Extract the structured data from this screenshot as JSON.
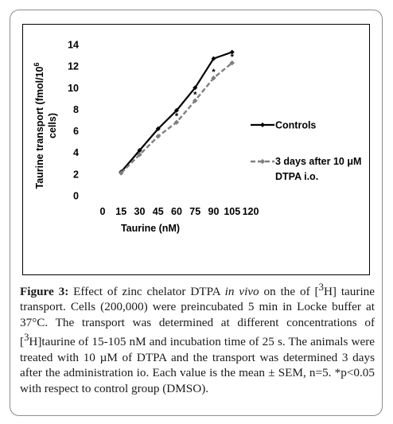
{
  "chart_data": {
    "type": "line",
    "xlabel": "Taurine (nM)",
    "ylabel_line1": "Taurine transport (fmol/10",
    "ylabel_sup": "6",
    "ylabel_line2": "cells)",
    "xlim": [
      0,
      120
    ],
    "ylim": [
      0,
      14
    ],
    "xticks": [
      "0",
      "15",
      "30",
      "45",
      "60",
      "75",
      "90",
      "105",
      "120"
    ],
    "yticks": [
      "0",
      "2",
      "4",
      "6",
      "8",
      "10",
      "12",
      "14"
    ],
    "x": [
      15,
      30,
      45,
      60,
      75,
      90,
      105
    ],
    "series": [
      {
        "name": "Controls",
        "values": [
          2.2,
          4.2,
          6.2,
          7.9,
          10.0,
          12.7,
          13.3
        ],
        "style": "solid",
        "color": "#000000"
      },
      {
        "name": "3 days after 10 μM DTPA i.o.",
        "legend_line1": "3 days after 10 μM",
        "legend_line2": "DTPA i.o.",
        "values": [
          2.1,
          3.8,
          5.5,
          6.8,
          8.8,
          10.9,
          12.3
        ],
        "style": "dashed",
        "color": "#7f7f7f"
      }
    ],
    "significance_marker": "*",
    "significant_x": [
      45,
      60,
      75,
      90,
      105
    ],
    "grid": false,
    "legend_position": "right"
  },
  "caption": {
    "label": "Figure 3:",
    "part1": " Effect of zinc chelator DTPA ",
    "italic": "in vivo",
    "part2": " on the of [",
    "sup1": "3",
    "part3": "H] taurine transport. Cells (200,000) were preincubated 5 min in Locke buffer at 37°C. The transport was determined at different concentrations of [",
    "sup2": "3",
    "part4": "H]taurine of 15-105 nM and incubation time of 25 s. The animals were treated with 10 µM of DTPA and the transport was determined 3 days after the administration io. Each value is the mean ± SEM, n=5. *p<0.05 with respect to control group (DMSO)."
  }
}
